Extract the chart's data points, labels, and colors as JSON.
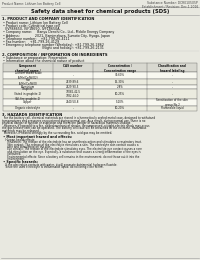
{
  "bg_color": "#e8e8e0",
  "inner_bg": "#f0f0e8",
  "header_top_left": "Product Name: Lithium Ion Battery Cell",
  "header_top_right_l1": "Substance Number: DCR010505P",
  "header_top_right_l2": "Establishment / Revision: Dec.1.2016",
  "title": "Safety data sheet for chemical products (SDS)",
  "section1_header": "1. PRODUCT AND COMPANY IDENTIFICATION",
  "section1_lines": [
    " • Product name: Lithium Ion Battery Cell",
    " • Product code: Cylindrical type cell",
    "   (IVF88650, IVF18650, IVF18650A,",
    " • Company name:     Banyu Denchi Co., Ltd., Mobile Energy Company",
    " • Address:               2021, Kamimakura, Sumoto City, Hyogo, Japan",
    " • Telephone number:    +81-799-26-4111",
    " • Fax number:    +81-799-26-4129",
    " • Emergency telephone number (Weekday): +81-799-26-2862",
    "                                        (Night and holiday): +81-799-26-2131"
  ],
  "section2_header": "2. COMPOSITION / INFORMATION ON INGREDIENTS",
  "section2_intro": " • Substance or preparation: Preparation",
  "section2_sub": " • Information about the chemical nature of product",
  "th0": "Component\nchemical name /",
  "th0b": "Several name",
  "th1": "CAS number",
  "th2": "Concentration /\nConcentration range",
  "th3": "Classification and\nhazard labeling",
  "table_rows": [
    [
      "Lithium cobalt oxide\n(LiMn/Co/Ni/O2)",
      "-",
      "30-60%",
      "-"
    ],
    [
      "Iron\n(LiMn/Co/Ni/O)",
      "7439-89-6",
      "15-30%",
      "-"
    ],
    [
      "Aluminium",
      "7429-90-5",
      "2-8%",
      "-"
    ],
    [
      "Graphite\n(listed in graphite-1)\n(All-fire graphite-1)",
      "77082-42-5\n7782-44-0",
      "10-25%",
      "-"
    ],
    [
      "Copper",
      "7440-50-8",
      "5-10%",
      "Sensitization of the skin\ngroup No.2"
    ],
    [
      "Organic electrolyte",
      "-",
      "10-20%",
      "Flammable liquid"
    ]
  ],
  "section3_header": "3. HAZARDS IDENTIFICATION",
  "section3_lines": [
    "  For the battery cell, chemical materials are stored in a hermetically sealed metal case, designed to withstand",
    "temperatures and pressures encountered during normal use. As a result, during normal use, there is no",
    "physical danger of ignition or aspiration and therefore danger of hazardous materials leakage.",
    "  However, if exposed to a fire, added mechanical shocks, decompressed, airtight electric shock may occur,",
    "the gas release vent can be operated. The battery cell case will be breached at the extreme. Hazardous",
    "materials may be released.",
    "  Moreover, if heated strongly by the surrounding fire, acid gas may be emitted."
  ],
  "s3b1": " • Most important hazard and effects:",
  "s3b1_lines": [
    "    Human health effects:",
    "      Inhalation: The release of the electrolyte has an anesthesia action and stimulates a respiratory tract.",
    "      Skin contact: The release of the electrolyte stimulates a skin. The electrolyte skin contact causes a",
    "      sore and stimulation on the skin.",
    "      Eye contact: The release of the electrolyte stimulates eyes. The electrolyte eye contact causes a sore",
    "      and stimulation on the eye. Especially, a substance that causes a strong inflammation of the eyes is",
    "      contained.",
    "      Environmental effects: Since a battery cell remains in the environment, do not throw out it into the",
    "      environment."
  ],
  "s3b2": " • Specific hazards:",
  "s3b2_lines": [
    "    If the electrolyte contacts with water, it will generate detrimental hydrogen fluoride.",
    "    Since the used electrolyte is inflammable liquid, do not bring close to fire."
  ]
}
